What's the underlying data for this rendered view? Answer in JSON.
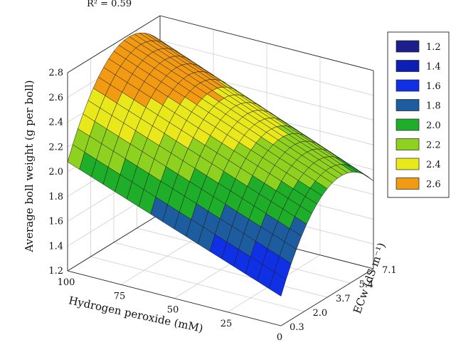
{
  "chart_data": {
    "type": "surface",
    "annotation": "R² = 0.59",
    "z_label": "Average boll weight (g per boll)",
    "x_label": "Hydrogen peroxide (mM)",
    "y_label": "ECw (dS m⁻¹)",
    "z_ticks": [
      "1.2",
      "1.4",
      "1.6",
      "1.8",
      "2.0",
      "2.2",
      "2.4",
      "2.6",
      "2.8"
    ],
    "x_ticks": [
      "100",
      "75",
      "50",
      "25",
      "0"
    ],
    "y_ticks": [
      "0.3",
      "2.0",
      "3.7",
      "5.4",
      "7.1"
    ],
    "z_range": [
      1.2,
      2.8
    ],
    "x_range": [
      0,
      100
    ],
    "y_range": [
      0.3,
      7.1
    ],
    "legend": [
      {
        "label": "1.2",
        "color": "#1a1f8c"
      },
      {
        "label": "1.4",
        "color": "#0b1fb4"
      },
      {
        "label": "1.6",
        "color": "#1030e6"
      },
      {
        "label": "1.8",
        "color": "#1d5c9e"
      },
      {
        "label": "2.0",
        "color": "#1fae2a"
      },
      {
        "label": "2.2",
        "color": "#8fd11f"
      },
      {
        "label": "2.4",
        "color": "#e8e81a"
      },
      {
        "label": "2.6",
        "color": "#f29a12"
      }
    ],
    "surface_corners": [
      {
        "hydrogen_peroxide": 100,
        "ecw": 0.3,
        "boll_weight": 2.08
      },
      {
        "hydrogen_peroxide": 100,
        "ecw": 7.1,
        "boll_weight": 2.6
      },
      {
        "hydrogen_peroxide": 0,
        "ecw": 0.3,
        "boll_weight": 1.58
      },
      {
        "hydrogen_peroxide": 0,
        "ecw": 7.1,
        "boll_weight": 2.05
      }
    ],
    "peak_ecw": 3.7,
    "peak_boll_weight": 2.48
  }
}
